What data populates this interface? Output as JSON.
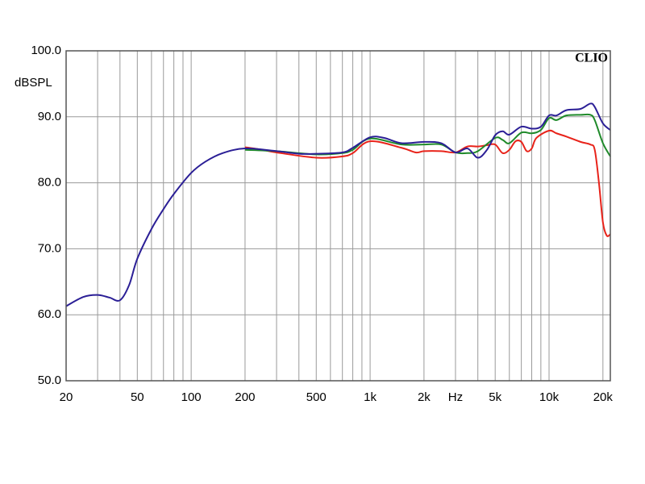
{
  "chart_data": {
    "type": "line",
    "title": "CLIO",
    "y_label": "dBSPL",
    "xlim": [
      20,
      22000
    ],
    "ylim": [
      50,
      100
    ],
    "xscale": "log",
    "xticks": [
      20,
      50,
      100,
      200,
      500,
      {
        "value": 1000,
        "label": "1k"
      },
      {
        "value": 2000,
        "label": "2k"
      },
      {
        "value": 3000,
        "label": "Hz"
      },
      {
        "value": 5000,
        "label": "5k"
      },
      {
        "value": 10000,
        "label": "10k"
      },
      {
        "value": 20000,
        "label": "20k"
      }
    ],
    "xgrid": [
      30,
      40,
      60,
      70,
      80,
      90,
      300,
      400,
      600,
      700,
      800,
      900,
      4000,
      6000,
      7000,
      8000,
      9000
    ],
    "yticks": [
      {
        "value": 50,
        "label": "50.0"
      },
      {
        "value": 60,
        "label": "60.0"
      },
      {
        "value": 70,
        "label": "70.0"
      },
      {
        "value": 80,
        "label": "80.0"
      },
      {
        "value": 90,
        "label": "90.0"
      },
      {
        "value": 100,
        "label": "100.0"
      }
    ],
    "grid": true,
    "series": [
      {
        "color": "#2b1f96",
        "x": [
          20,
          25,
          30,
          35,
          40,
          45,
          50,
          60,
          70,
          80,
          100,
          120,
          150,
          200,
          300,
          400,
          500,
          700,
          800,
          1000,
          1200,
          1500,
          2000,
          2500,
          3000,
          3500,
          4000,
          4500,
          5000,
          5500,
          6000,
          7000,
          8000,
          9000,
          10000,
          11000,
          12500,
          15000,
          17000,
          18000,
          20000,
          22000
        ],
        "values": [
          61.3,
          62.7,
          63.0,
          62.6,
          62.2,
          64.5,
          68.5,
          73,
          76,
          78.3,
          81.5,
          83.2,
          84.5,
          85.2,
          84.8,
          84.4,
          84.4,
          84.6,
          85.3,
          86.9,
          86.8,
          86,
          86.2,
          86,
          84.6,
          85.2,
          83.8,
          85,
          87.2,
          87.8,
          87.3,
          88.5,
          88.2,
          88.5,
          90.2,
          90.2,
          91,
          91.2,
          92,
          91.5,
          89,
          88
        ]
      },
      {
        "color": "#1f8a2a",
        "x": [
          200,
          300,
          500,
          700,
          800,
          1000,
          1500,
          2000,
          2500,
          3000,
          3500,
          4000,
          5000,
          5500,
          6000,
          7000,
          8000,
          9000,
          10000,
          11000,
          12500,
          15000,
          17000,
          18000,
          20000,
          22000
        ],
        "values": [
          85,
          84.8,
          84.3,
          84.5,
          85,
          86.7,
          85.8,
          85.8,
          85.8,
          84.6,
          84.5,
          84.8,
          86.8,
          86.5,
          86,
          87.6,
          87.5,
          88,
          89.8,
          89.5,
          90.2,
          90.3,
          90.3,
          89.5,
          86,
          84
        ]
      },
      {
        "color": "#e8231a",
        "x": [
          200,
          250,
          300,
          500,
          700,
          800,
          1000,
          1500,
          1800,
          2000,
          2500,
          3000,
          3500,
          4000,
          4500,
          5000,
          5500,
          6000,
          6500,
          7000,
          7500,
          8000,
          8500,
          10000,
          11000,
          12500,
          15000,
          17000,
          18000,
          19000,
          20000,
          21000,
          22000
        ],
        "values": [
          85.4,
          85,
          84.6,
          83.8,
          84,
          84.5,
          86.3,
          85.3,
          84.6,
          84.8,
          84.8,
          84.6,
          85.5,
          85.5,
          85.7,
          85.8,
          84.5,
          85,
          86.3,
          86.2,
          84.8,
          85.2,
          86.8,
          87.9,
          87.5,
          87,
          86.2,
          85.8,
          85,
          80,
          74,
          72,
          72.2
        ]
      }
    ]
  }
}
